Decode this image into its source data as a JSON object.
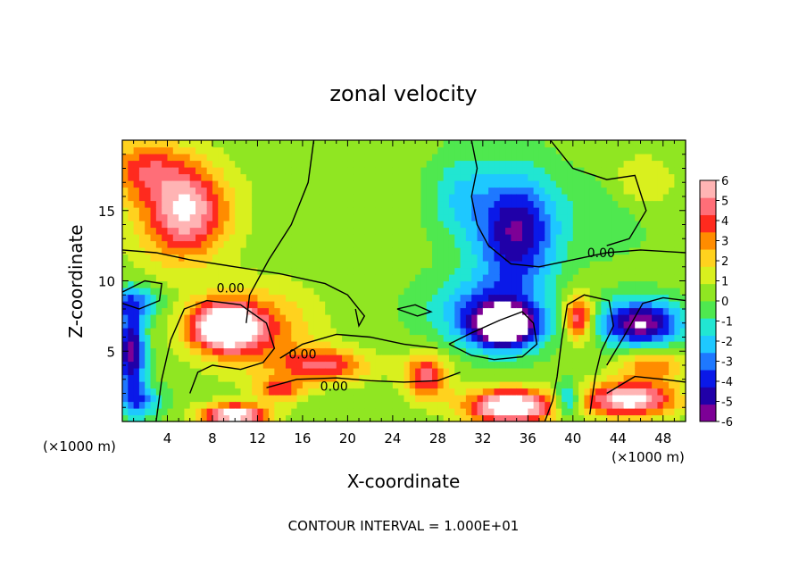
{
  "chart_data": {
    "type": "heatmap",
    "title": "zonal velocity",
    "xlabel": "X-coordinate",
    "ylabel": "Z-coordinate",
    "x_unit_note": "(×1000 m)",
    "z_unit_note": "(×1000 m)",
    "xlim": [
      0,
      50
    ],
    "ylim": [
      0,
      20
    ],
    "x_ticks": [
      4,
      8,
      12,
      16,
      20,
      24,
      28,
      32,
      36,
      40,
      44,
      48
    ],
    "y_ticks": [
      5,
      10,
      15
    ],
    "footer": "CONTOUR INTERVAL = 1.000E+01",
    "contour_label": "0.00",
    "colorbar": {
      "min": -6,
      "max": 6,
      "ticks": [
        6,
        5,
        4,
        3,
        2,
        1,
        0,
        -1,
        -2,
        -3,
        -4,
        -5,
        -6
      ],
      "colors": [
        "#7d0096",
        "#2000a8",
        "#0a19e8",
        "#1e78ff",
        "#1ec8ff",
        "#21e6d2",
        "#4fe84f",
        "#90e622",
        "#d9f01e",
        "#ffd21e",
        "#ff8c00",
        "#ff2a1e",
        "#ff6e78",
        "#ffb4b4"
      ],
      "saturation_colors": {
        "above": "#ffffff",
        "below": "#ffffff"
      }
    },
    "features": [
      {
        "x": 6,
        "z": 15,
        "value": 4.6,
        "sx": 3.5,
        "sz": 3
      },
      {
        "x": 2,
        "z": 18,
        "value": 3.2,
        "sx": 4,
        "sz": 2.2
      },
      {
        "x": 4,
        "z": 14,
        "value": 1.5,
        "sx": 4,
        "sz": 4
      },
      {
        "x": 35,
        "z": 13.5,
        "value": -5.6,
        "sx": 3.5,
        "sz": 4
      },
      {
        "x": 30,
        "z": 16,
        "value": -2,
        "sx": 3,
        "sz": 3
      },
      {
        "x": 43,
        "z": 15,
        "value": -1,
        "sx": 4,
        "sz": 3
      },
      {
        "x": 18,
        "z": 16,
        "value": 0.4,
        "sx": 8,
        "sz": 5
      },
      {
        "x": 46,
        "z": 17,
        "value": 1.6,
        "sx": 3,
        "sz": 2
      },
      {
        "x": 9,
        "z": 6.8,
        "value": 7,
        "sx": 3,
        "sz": 1.7
      },
      {
        "x": 12,
        "z": 6.5,
        "value": 3,
        "sx": 5,
        "sz": 3
      },
      {
        "x": 34,
        "z": 6.8,
        "value": -7.5,
        "sx": 3,
        "sz": 1.6
      },
      {
        "x": 32,
        "z": 8,
        "value": -3,
        "sx": 5,
        "sz": 2.5
      },
      {
        "x": 40.5,
        "z": 7.5,
        "value": 5,
        "sx": 1.3,
        "sz": 1.6
      },
      {
        "x": 46,
        "z": 7,
        "value": -6.5,
        "sx": 3.5,
        "sz": 1.6
      },
      {
        "x": 47,
        "z": 4,
        "value": 3,
        "sx": 3,
        "sz": 1.2
      },
      {
        "x": 0.8,
        "z": 5,
        "value": -6,
        "sx": 1.2,
        "sz": 3
      },
      {
        "x": 1,
        "z": 8.5,
        "value": -3,
        "sx": 2.5,
        "sz": 1.2
      },
      {
        "x": 18,
        "z": 4,
        "value": 4,
        "sx": 4,
        "sz": 1.2
      },
      {
        "x": 14,
        "z": 2.3,
        "value": 3.5,
        "sx": 2,
        "sz": 0.8
      },
      {
        "x": 27,
        "z": 3.2,
        "value": 4.5,
        "sx": 2,
        "sz": 1.6
      },
      {
        "x": 34.5,
        "z": 1.1,
        "value": 7.5,
        "sx": 4,
        "sz": 1.2
      },
      {
        "x": 45,
        "z": 1.6,
        "value": 6.5,
        "sx": 4,
        "sz": 1.2
      },
      {
        "x": 10,
        "z": 0.5,
        "value": 6.5,
        "sx": 3,
        "sz": 0.8
      },
      {
        "x": 1.5,
        "z": 1.5,
        "value": -3,
        "sx": 2,
        "sz": 1.2
      },
      {
        "x": 39.5,
        "z": 1.5,
        "value": -4,
        "sx": 1.2,
        "sz": 1.2
      }
    ],
    "zero_contours": [
      [
        [
          17,
          20
        ],
        [
          16.5,
          17
        ],
        [
          15,
          14
        ],
        [
          13,
          11.5
        ],
        [
          11.3,
          9
        ],
        [
          11,
          7
        ]
      ],
      [
        [
          0,
          12.2
        ],
        [
          3,
          12
        ],
        [
          6,
          11.5
        ],
        [
          10,
          11
        ],
        [
          14,
          10.5
        ],
        [
          18,
          9.8
        ],
        [
          20,
          9
        ],
        [
          21.5,
          7.5
        ],
        [
          21,
          6.8
        ],
        [
          20.7,
          8
        ]
      ],
      [
        [
          31,
          20
        ],
        [
          31.5,
          18
        ],
        [
          31,
          16
        ],
        [
          31.5,
          14
        ],
        [
          32.5,
          12.5
        ],
        [
          34.5,
          11.2
        ],
        [
          37,
          11
        ],
        [
          40,
          11.5
        ],
        [
          43,
          12
        ],
        [
          46,
          12.2
        ],
        [
          50,
          12
        ]
      ],
      [
        [
          38,
          20
        ],
        [
          40,
          18
        ],
        [
          43,
          17.2
        ],
        [
          45.5,
          17.5
        ],
        [
          46.5,
          15
        ],
        [
          45,
          13
        ],
        [
          43,
          12.5
        ]
      ],
      [
        [
          0,
          9.2
        ],
        [
          2,
          10
        ],
        [
          3.5,
          9.8
        ],
        [
          3.3,
          8.6
        ],
        [
          1.5,
          8
        ],
        [
          0,
          8.4
        ]
      ],
      [
        [
          3,
          0
        ],
        [
          3.5,
          3
        ],
        [
          4.3,
          5.8
        ],
        [
          5.5,
          8
        ],
        [
          7.5,
          8.6
        ],
        [
          10.5,
          8.3
        ],
        [
          12.8,
          7
        ],
        [
          13.5,
          5.2
        ],
        [
          12.5,
          4.2
        ],
        [
          10.5,
          3.7
        ],
        [
          8,
          4
        ],
        [
          6.7,
          3.5
        ],
        [
          6,
          2
        ]
      ],
      [
        [
          14,
          4.5
        ],
        [
          16,
          5.5
        ],
        [
          19,
          6.2
        ],
        [
          22,
          6
        ],
        [
          25,
          5.5
        ],
        [
          28,
          5.2
        ]
      ],
      [
        [
          12.8,
          2.4
        ],
        [
          15.5,
          3
        ],
        [
          19,
          3.1
        ],
        [
          22,
          2.9
        ],
        [
          25,
          2.8
        ],
        [
          28,
          2.9
        ],
        [
          30,
          3.5
        ]
      ],
      [
        [
          24.4,
          8
        ],
        [
          26.2,
          7.5
        ],
        [
          27.4,
          7.8
        ],
        [
          26,
          8.3
        ],
        [
          24.4,
          8
        ]
      ],
      [
        [
          29,
          5.5
        ],
        [
          31,
          6.3
        ],
        [
          33.5,
          7.2
        ],
        [
          35.5,
          7.8
        ],
        [
          36.5,
          7
        ],
        [
          36.8,
          5.5
        ],
        [
          35.5,
          4.6
        ],
        [
          33,
          4.4
        ],
        [
          31,
          4.7
        ],
        [
          29,
          5.5
        ]
      ],
      [
        [
          37.5,
          0
        ],
        [
          38.2,
          1.5
        ],
        [
          38.6,
          3.2
        ],
        [
          39,
          5.8
        ],
        [
          39.5,
          8.3
        ],
        [
          41,
          9
        ],
        [
          43.2,
          8.6
        ],
        [
          43.6,
          6.8
        ],
        [
          42.5,
          5
        ],
        [
          42,
          3.3
        ],
        [
          41.5,
          0.5
        ]
      ],
      [
        [
          43,
          4
        ],
        [
          44.5,
          6
        ],
        [
          46.2,
          8.4
        ],
        [
          48,
          8.8
        ],
        [
          50,
          8.6
        ]
      ],
      [
        [
          43,
          2
        ],
        [
          45.5,
          3.2
        ],
        [
          48,
          3
        ],
        [
          50,
          2.8
        ]
      ]
    ],
    "label_positions": [
      [
        9.6,
        9.5
      ],
      [
        42.5,
        12
      ],
      [
        16,
        4.8
      ],
      [
        18.8,
        2.5
      ]
    ]
  }
}
